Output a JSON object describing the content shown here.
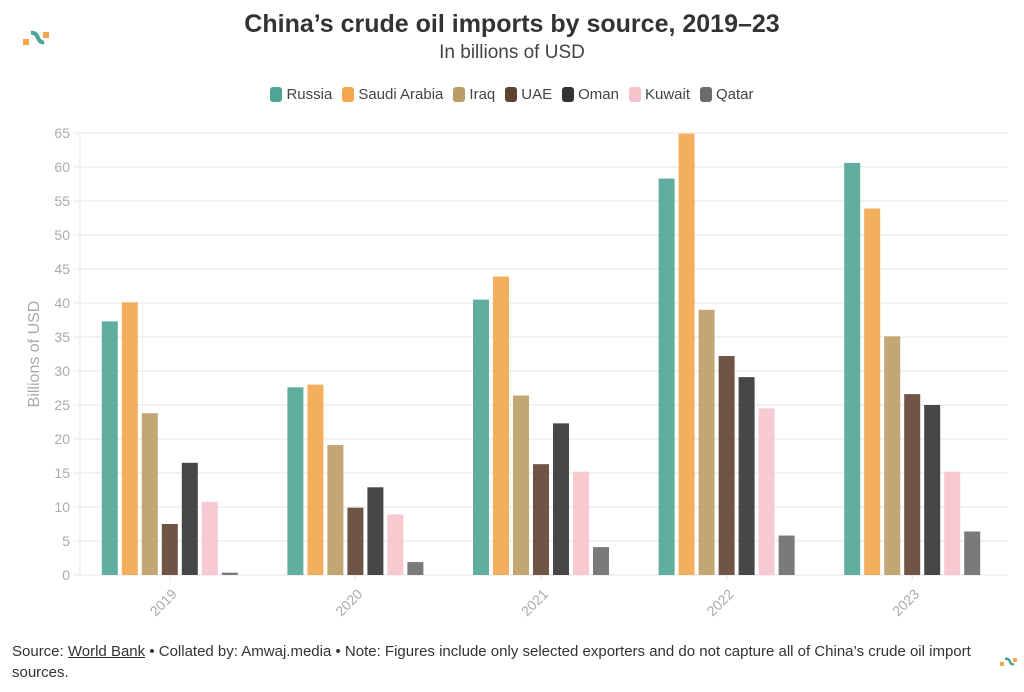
{
  "title": "China’s crude oil imports by source, 2019–23",
  "subtitle": "In billions of USD",
  "footer": {
    "source_label": "Source:",
    "source_link": "World Bank",
    "rest": "• Collated by: Amwaj.media • Note: Figures include only selected exporters and do not capture all of China’s crude oil import sources."
  },
  "chart_data": {
    "type": "bar",
    "title": "China’s crude oil imports by source, 2019–23",
    "subtitle": "In billions of USD",
    "xlabel": "",
    "ylabel": "Billions of USD",
    "ylim": [
      0,
      65
    ],
    "yticks": [
      0,
      5,
      10,
      15,
      20,
      25,
      30,
      35,
      40,
      45,
      50,
      55,
      60,
      65
    ],
    "grid": true,
    "legend_position": "top-center",
    "categories": [
      "2019",
      "2020",
      "2021",
      "2022",
      "2023"
    ],
    "series": [
      {
        "name": "Russia",
        "color": "#4fa595",
        "values": [
          37.3,
          27.6,
          40.5,
          58.3,
          60.6
        ]
      },
      {
        "name": "Saudi Arabia",
        "color": "#f3a64c",
        "values": [
          40.1,
          28.0,
          43.9,
          64.9,
          53.9
        ]
      },
      {
        "name": "Iraq",
        "color": "#bb9c65",
        "values": [
          23.8,
          19.1,
          26.4,
          39.0,
          35.1
        ]
      },
      {
        "name": "UAE",
        "color": "#5f4331",
        "values": [
          7.5,
          9.9,
          16.3,
          32.2,
          26.6
        ]
      },
      {
        "name": "Oman",
        "color": "#333333",
        "values": [
          16.5,
          12.9,
          22.3,
          29.1,
          25.0
        ]
      },
      {
        "name": "Kuwait",
        "color": "#f6c3cc",
        "values": [
          10.75,
          8.9,
          15.2,
          24.5,
          15.2
        ]
      },
      {
        "name": "Qatar",
        "color": "#6b6b6b",
        "values": [
          0.35,
          1.9,
          4.1,
          5.8,
          6.4
        ]
      }
    ]
  }
}
